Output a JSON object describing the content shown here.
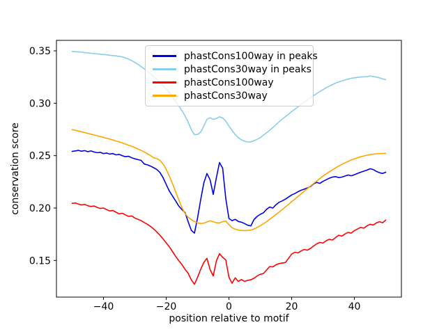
{
  "chart_data": {
    "type": "line",
    "title": "",
    "xlabel": "position relative to motif",
    "ylabel": "conservation score",
    "xlim": [
      -55,
      55
    ],
    "ylim": [
      0.115,
      0.36
    ],
    "grid": false,
    "legend_position": "upper center",
    "xticks": {
      "values": [
        -40,
        -20,
        0,
        20,
        40
      ],
      "labels": [
        "−40",
        "−20",
        "0",
        "20",
        "40"
      ]
    },
    "yticks": {
      "values": [
        0.15,
        0.2,
        0.25,
        0.3,
        0.35
      ],
      "labels": [
        "0.15",
        "0.20",
        "0.25",
        "0.30",
        "0.35"
      ]
    },
    "x": [
      -50,
      -49,
      -48,
      -47,
      -46,
      -45,
      -44,
      -43,
      -42,
      -41,
      -40,
      -39,
      -38,
      -37,
      -36,
      -35,
      -34,
      -33,
      -32,
      -31,
      -30,
      -29,
      -28,
      -27,
      -26,
      -25,
      -24,
      -23,
      -22,
      -21,
      -20,
      -19,
      -18,
      -17,
      -16,
      -15,
      -14,
      -13,
      -12,
      -11,
      -10,
      -9,
      -8,
      -7,
      -6,
      -5,
      -4,
      -3,
      -2,
      -1,
      0,
      1,
      2,
      3,
      4,
      5,
      6,
      7,
      8,
      9,
      10,
      11,
      12,
      13,
      14,
      15,
      16,
      17,
      18,
      19,
      20,
      21,
      22,
      23,
      24,
      25,
      26,
      27,
      28,
      29,
      30,
      31,
      32,
      33,
      34,
      35,
      36,
      37,
      38,
      39,
      40,
      41,
      42,
      43,
      44,
      45,
      46,
      47,
      48,
      49,
      50
    ],
    "series": [
      {
        "name": "phastCons100way in peaks",
        "color": "#0000e8",
        "values": [
          0.254,
          0.2545,
          0.255,
          0.2542,
          0.2548,
          0.2538,
          0.2545,
          0.2535,
          0.2528,
          0.2532,
          0.252,
          0.2525,
          0.2515,
          0.252,
          0.2508,
          0.2512,
          0.25,
          0.249,
          0.2494,
          0.248,
          0.247,
          0.2462,
          0.2455,
          0.242,
          0.2412,
          0.24,
          0.2385,
          0.2368,
          0.234,
          0.229,
          0.2225,
          0.2162,
          0.2115,
          0.2068,
          0.202,
          0.1985,
          0.1958,
          0.187,
          0.1788,
          0.176,
          0.1905,
          0.208,
          0.224,
          0.233,
          0.2268,
          0.213,
          0.229,
          0.2435,
          0.238,
          0.209,
          0.19,
          0.188,
          0.1892,
          0.1872,
          0.1865,
          0.1852,
          0.1836,
          0.183,
          0.189,
          0.192,
          0.194,
          0.1955,
          0.1988,
          0.201,
          0.2,
          0.2032,
          0.2055,
          0.2068,
          0.2085,
          0.2105,
          0.2125,
          0.2138,
          0.2155,
          0.217,
          0.218,
          0.2192,
          0.2205,
          0.223,
          0.2245,
          0.2235,
          0.2255,
          0.227,
          0.2285,
          0.2295,
          0.23,
          0.229,
          0.2295,
          0.2305,
          0.2315,
          0.2308,
          0.2318,
          0.233,
          0.2342,
          0.2352,
          0.2362,
          0.2375,
          0.2368,
          0.235,
          0.2338,
          0.233,
          0.2342
        ]
      },
      {
        "name": "phastCons30way in peaks",
        "color": "#87ceeb",
        "values": [
          0.3495,
          0.3492,
          0.349,
          0.3487,
          0.3484,
          0.348,
          0.3477,
          0.3474,
          0.3471,
          0.3468,
          0.3465,
          0.3462,
          0.3458,
          0.3455,
          0.3452,
          0.3448,
          0.3442,
          0.3432,
          0.342,
          0.3406,
          0.339,
          0.3372,
          0.335,
          0.3328,
          0.3305,
          0.328,
          0.3255,
          0.3228,
          0.3198,
          0.3168,
          0.3135,
          0.31,
          0.306,
          0.3018,
          0.2975,
          0.293,
          0.288,
          0.282,
          0.2748,
          0.27,
          0.2702,
          0.2725,
          0.2782,
          0.2848,
          0.2862,
          0.2846,
          0.2855,
          0.287,
          0.286,
          0.283,
          0.2782,
          0.274,
          0.2702,
          0.2672,
          0.265,
          0.2638,
          0.263,
          0.2632,
          0.2642,
          0.2656,
          0.2672,
          0.2695,
          0.2718,
          0.2742,
          0.2768,
          0.2795,
          0.2822,
          0.2848,
          0.2872,
          0.2895,
          0.292,
          0.2942,
          0.2965,
          0.2988,
          0.301,
          0.3032,
          0.3052,
          0.3072,
          0.3092,
          0.3112,
          0.313,
          0.3148,
          0.3163,
          0.3178,
          0.3192,
          0.3203,
          0.3213,
          0.3222,
          0.323,
          0.3238,
          0.3243,
          0.3247,
          0.325,
          0.3252,
          0.3255,
          0.326,
          0.3255,
          0.325,
          0.3242,
          0.3232,
          0.3225
        ]
      },
      {
        "name": "phastCons100way",
        "color": "#ff0000",
        "values": [
          0.2045,
          0.2048,
          0.2038,
          0.203,
          0.2035,
          0.2022,
          0.2015,
          0.202,
          0.2006,
          0.1996,
          0.2,
          0.1985,
          0.1972,
          0.1976,
          0.196,
          0.1945,
          0.195,
          0.1935,
          0.192,
          0.1925,
          0.1905,
          0.1892,
          0.188,
          0.1862,
          0.1845,
          0.1825,
          0.18,
          0.1772,
          0.174,
          0.1705,
          0.1668,
          0.163,
          0.1585,
          0.154,
          0.1498,
          0.1462,
          0.1415,
          0.1378,
          0.1315,
          0.1272,
          0.134,
          0.1415,
          0.1482,
          0.152,
          0.1412,
          0.1352,
          0.1495,
          0.1565,
          0.153,
          0.1505,
          0.134,
          0.1282,
          0.1334,
          0.13,
          0.1318,
          0.13,
          0.131,
          0.1315,
          0.133,
          0.1352,
          0.1368,
          0.1375,
          0.1408,
          0.1442,
          0.1438,
          0.1458,
          0.147,
          0.1475,
          0.148,
          0.152,
          0.156,
          0.1578,
          0.1572,
          0.159,
          0.1605,
          0.1598,
          0.1615,
          0.1638,
          0.1658,
          0.1672,
          0.1665,
          0.1688,
          0.1702,
          0.1695,
          0.1718,
          0.174,
          0.1732,
          0.1752,
          0.1768,
          0.176,
          0.1785,
          0.18,
          0.1815,
          0.1808,
          0.183,
          0.1845,
          0.1838,
          0.1858,
          0.187,
          0.186,
          0.1885
        ]
      },
      {
        "name": "phastCons30way",
        "color": "#ffa500",
        "values": [
          0.2748,
          0.2742,
          0.2735,
          0.2728,
          0.272,
          0.2712,
          0.2705,
          0.2697,
          0.269,
          0.2682,
          0.2674,
          0.2666,
          0.2658,
          0.2649,
          0.264,
          0.2631,
          0.2621,
          0.2611,
          0.26,
          0.2589,
          0.2577,
          0.2564,
          0.255,
          0.2535,
          0.2518,
          0.25,
          0.248,
          0.2472,
          0.2455,
          0.242,
          0.237,
          0.2305,
          0.2232,
          0.2155,
          0.208,
          0.2005,
          0.1948,
          0.1912,
          0.189,
          0.1872,
          0.186,
          0.1852,
          0.1856,
          0.1868,
          0.1878,
          0.187,
          0.186,
          0.1858,
          0.187,
          0.1876,
          0.1842,
          0.1812,
          0.1798,
          0.179,
          0.1786,
          0.1785,
          0.1786,
          0.179,
          0.18,
          0.1815,
          0.1832,
          0.185,
          0.187,
          0.1892,
          0.1915,
          0.1938,
          0.1962,
          0.1986,
          0.201,
          0.2035,
          0.206,
          0.2085,
          0.211,
          0.2135,
          0.216,
          0.2185,
          0.221,
          0.2235,
          0.2258,
          0.2282,
          0.2305,
          0.2326,
          0.2346,
          0.2365,
          0.2383,
          0.24,
          0.2416,
          0.2431,
          0.2445,
          0.2458,
          0.247,
          0.248,
          0.2489,
          0.2497,
          0.2504,
          0.251,
          0.2514,
          0.2518,
          0.252,
          0.2521,
          0.2522
        ]
      }
    ]
  }
}
